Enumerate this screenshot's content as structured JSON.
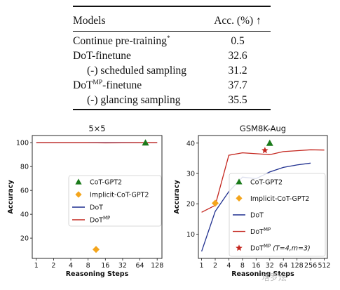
{
  "table": {
    "header": {
      "models": "Models",
      "acc": "Acc. (%) ↑"
    },
    "rows": [
      {
        "model": "Continue pre-training",
        "sup": "*",
        "acc": "0.5",
        "indent": false
      },
      {
        "model": "DoT-finetune",
        "sup": "",
        "acc": "32.6",
        "indent": false
      },
      {
        "model": "(-) scheduled sampling",
        "sup": "",
        "acc": "31.2",
        "indent": true
      },
      {
        "model_pre": "DoT",
        "model_sup": "MP",
        "model_post": "-finetune",
        "acc": "37.7",
        "indent": false
      },
      {
        "model": "(-) glancing sampling",
        "sup": "",
        "acc": "35.5",
        "indent": true
      }
    ]
  },
  "watermark": "塔罗烩",
  "chart_data": [
    {
      "type": "line",
      "title": "5×5",
      "xlabel": "Reasoning Steps",
      "ylabel": "Accuracy",
      "x_scale": "log2",
      "x_ticks": [
        1,
        2,
        4,
        8,
        16,
        32,
        64,
        128
      ],
      "x_tick_labels": [
        "1",
        "2",
        "4",
        "8",
        "16",
        "32",
        "64",
        "128"
      ],
      "y_ticks": [
        20,
        40,
        60,
        80,
        100
      ],
      "y_tick_labels": [
        "20",
        "40",
        "60",
        "80",
        "100"
      ],
      "xlim": [
        0.85,
        155
      ],
      "ylim": [
        3,
        106
      ],
      "legend_position": "center-right",
      "legend": [
        {
          "label": "CoT-GPT2",
          "marker": "triangle",
          "color": "#1a7a1a"
        },
        {
          "label": "Implicit-CoT-GPT2",
          "marker": "diamond",
          "color": "#f4a51c"
        },
        {
          "label": "DoT",
          "marker": "line",
          "color": "#1f2f8f"
        },
        {
          "label": "DoT",
          "label_sup": "MP",
          "marker": "line",
          "color": "#c4261e"
        }
      ],
      "series": [
        {
          "name": "DoT",
          "kind": "line",
          "color": "#1f2f8f",
          "x": [
            1,
            2,
            4,
            8,
            16,
            32,
            64,
            128
          ],
          "y": [
            100,
            100,
            100,
            100,
            100,
            100,
            100,
            100
          ]
        },
        {
          "name": "DoTMP",
          "kind": "line",
          "color": "#c4261e",
          "x": [
            1,
            2,
            4,
            8,
            16,
            32,
            64,
            128
          ],
          "y": [
            100,
            100,
            100,
            100,
            99.8,
            99.9,
            100,
            100
          ]
        },
        {
          "name": "CoT-GPT2",
          "kind": "triangle",
          "color": "#1a7a1a",
          "x": [
            80
          ],
          "y": [
            100
          ]
        },
        {
          "name": "Implicit-CoT-GPT2",
          "kind": "diamond",
          "color": "#f4a51c",
          "x": [
            11
          ],
          "y": [
            10.5
          ]
        }
      ]
    },
    {
      "type": "line",
      "title": "GSM8K-Aug",
      "xlabel": "Reasoning Steps",
      "ylabel": "Accuracy",
      "x_scale": "log2",
      "x_ticks": [
        1,
        2,
        4,
        8,
        16,
        32,
        64,
        128,
        256,
        512
      ],
      "x_tick_labels": [
        "1",
        "2",
        "4",
        "8",
        "16",
        "32",
        "64",
        "128",
        "256",
        "512"
      ],
      "y_ticks": [
        10,
        20,
        30,
        40
      ],
      "y_tick_labels": [
        "10",
        "20",
        "30",
        "40"
      ],
      "xlim": [
        0.85,
        600
      ],
      "ylim": [
        2,
        42.5
      ],
      "legend_position": "lower-right",
      "legend": [
        {
          "label": "CoT-GPT2",
          "marker": "triangle",
          "color": "#1a7a1a"
        },
        {
          "label": "Implicit-CoT-GPT2",
          "marker": "diamond",
          "color": "#f4a51c"
        },
        {
          "label": "DoT",
          "marker": "line",
          "color": "#1f2f8f"
        },
        {
          "label": "DoT",
          "label_sup": "MP",
          "marker": "line",
          "color": "#c4261e"
        },
        {
          "label": "DoT",
          "label_sup": "MP",
          "label_suffix": "(T=4,m=3)",
          "marker": "star",
          "color": "#c4261e"
        }
      ],
      "series": [
        {
          "name": "DoT",
          "kind": "line",
          "color": "#1f2f8f",
          "x": [
            1,
            2,
            4,
            8,
            16,
            32,
            64,
            128,
            256
          ],
          "y": [
            4.3,
            17.5,
            24,
            28.8,
            28.3,
            30.5,
            32,
            32.8,
            33.4
          ]
        },
        {
          "name": "DoTMP",
          "kind": "line",
          "color": "#c4261e",
          "x": [
            1,
            2,
            4,
            8,
            16,
            32,
            64,
            128,
            256,
            512
          ],
          "y": [
            17.2,
            19.5,
            36,
            36.8,
            36.5,
            36.2,
            37.2,
            37.5,
            37.8,
            37.7
          ]
        },
        {
          "name": "CoT-GPT2",
          "kind": "triangle",
          "color": "#1a7a1a",
          "x": [
            32
          ],
          "y": [
            40
          ]
        },
        {
          "name": "Implicit-CoT-GPT2",
          "kind": "diamond",
          "color": "#f4a51c",
          "x": [
            2
          ],
          "y": [
            20.2
          ]
        },
        {
          "name": "DoTMP (T=4,m=3)",
          "kind": "star",
          "color": "#c4261e",
          "x": [
            25
          ],
          "y": [
            37.6
          ]
        }
      ]
    }
  ]
}
